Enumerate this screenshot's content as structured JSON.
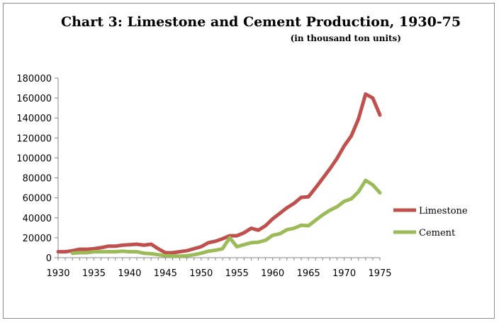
{
  "chart_data": {
    "type": "line",
    "title": "Chart 3: Limestone and Cement Production, 1930-75",
    "subtitle": "(in thousand ton units)",
    "xlabel": "",
    "ylabel": "",
    "xlim": [
      1930,
      1975
    ],
    "ylim": [
      0,
      180000
    ],
    "x_ticks": [
      "1930",
      "1935",
      "1940",
      "1945",
      "1950",
      "1955",
      "1960",
      "1965",
      "1970",
      "1975"
    ],
    "y_ticks": [
      "0",
      "20000",
      "40000",
      "60000",
      "80000",
      "100000",
      "120000",
      "140000",
      "160000",
      "180000"
    ],
    "grid": false,
    "legend_position": "right",
    "series": [
      {
        "name": "Limestone",
        "color": "#c0504d",
        "x": [
          1930,
          1931,
          1932,
          1933,
          1934,
          1935,
          1936,
          1937,
          1938,
          1939,
          1940,
          1941,
          1942,
          1943,
          1944,
          1945,
          1946,
          1947,
          1948,
          1949,
          1950,
          1951,
          1952,
          1953,
          1954,
          1955,
          1956,
          1957,
          1958,
          1959,
          1960,
          1961,
          1962,
          1963,
          1964,
          1965,
          1966,
          1967,
          1968,
          1969,
          1970,
          1971,
          1972,
          1973,
          1974,
          1975
        ],
        "values": [
          6000,
          6000,
          7000,
          8500,
          8500,
          9000,
          10000,
          11500,
          11500,
          12500,
          13000,
          13500,
          12500,
          13500,
          9000,
          5000,
          5000,
          6000,
          7000,
          9000,
          11000,
          15000,
          16500,
          19000,
          22000,
          22000,
          25000,
          29500,
          27500,
          32000,
          39000,
          44500,
          50000,
          54500,
          60500,
          61000,
          70000,
          79500,
          89000,
          99500,
          112000,
          122000,
          139000,
          164000,
          160000,
          143000
        ]
      },
      {
        "name": "Cement",
        "color": "#9bbb59",
        "x": [
          1932,
          1933,
          1934,
          1935,
          1936,
          1937,
          1938,
          1939,
          1940,
          1941,
          1942,
          1943,
          1944,
          1945,
          1946,
          1947,
          1948,
          1949,
          1950,
          1951,
          1952,
          1953,
          1954,
          1955,
          1956,
          1957,
          1958,
          1959,
          1960,
          1961,
          1962,
          1963,
          1964,
          1965,
          1966,
          1967,
          1968,
          1969,
          1970,
          1971,
          1972,
          1973,
          1974,
          1975
        ],
        "values": [
          4500,
          5000,
          5000,
          6000,
          6000,
          6000,
          6000,
          6500,
          6000,
          6000,
          4500,
          4000,
          3000,
          2000,
          1800,
          1500,
          2000,
          3000,
          4500,
          6500,
          7500,
          9000,
          20000,
          11000,
          13000,
          15000,
          15500,
          17500,
          22500,
          24000,
          28000,
          29500,
          32500,
          32000,
          37500,
          43000,
          47500,
          51000,
          56500,
          59000,
          66000,
          77500,
          73000,
          65000
        ]
      }
    ]
  }
}
